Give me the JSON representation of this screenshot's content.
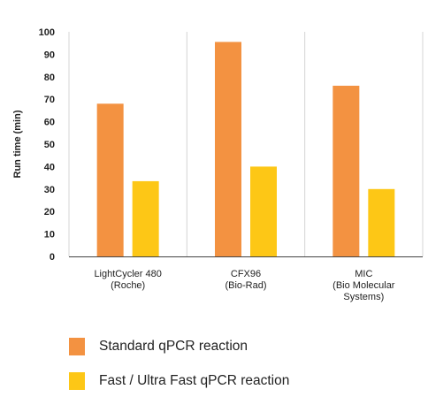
{
  "chart_data": {
    "type": "bar",
    "ylabel": "Run time (min)",
    "xlabel": "",
    "title": "",
    "ylim": [
      0,
      100
    ],
    "yticks": [
      0,
      10,
      20,
      30,
      40,
      50,
      60,
      70,
      80,
      90,
      100
    ],
    "grid": "vertical lines between categories",
    "legend_position": "bottom",
    "categories": [
      [
        "LightCycler 480",
        "(Roche)"
      ],
      [
        "CFX96",
        "(Bio-Rad)"
      ],
      [
        "MIC",
        "(Bio Molecular",
        "Systems)"
      ]
    ],
    "series": [
      {
        "name": "Standard qPCR reaction",
        "color": "#F39241",
        "values": [
          68,
          95.5,
          76
        ]
      },
      {
        "name": "Fast / Ultra Fast qPCR reaction",
        "color": "#FDC716",
        "values": [
          33.5,
          40,
          30
        ]
      }
    ]
  }
}
